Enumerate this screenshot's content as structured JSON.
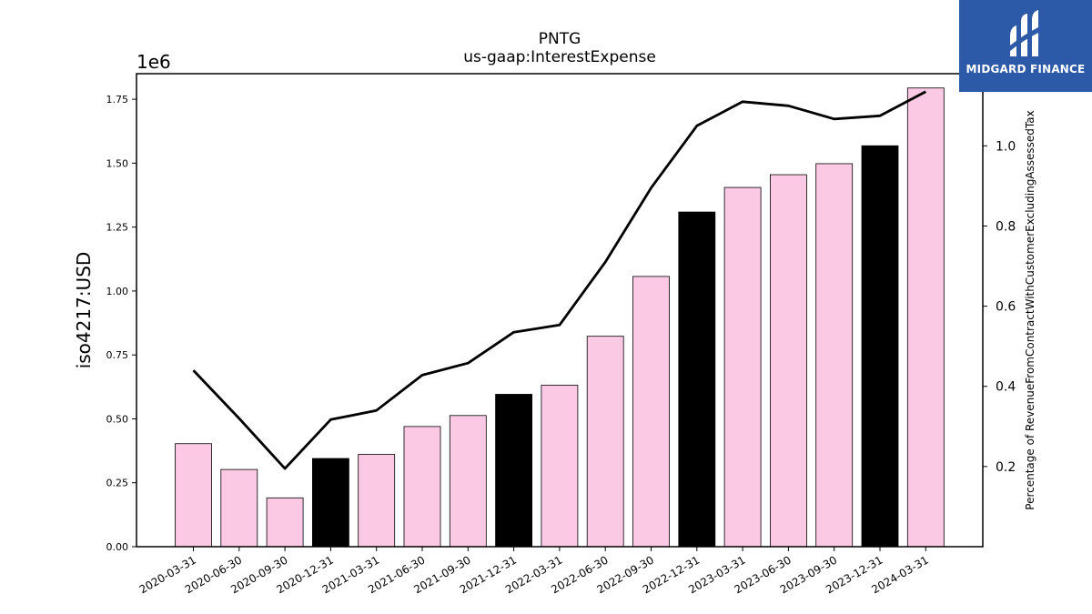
{
  "chart_data": {
    "type": "bar",
    "title": "PNTG",
    "subtitle": "us-gaap:InterestExpense",
    "ylabel": "iso4217:USD",
    "ylabel_right": "Percentage of RevenueFromContractWithCustomerExcludingAssessedTax",
    "offset_text": "1e6",
    "ylim": [
      0,
      1850000
    ],
    "ylim_right": [
      0.0,
      1.18
    ],
    "yticks": [
      0,
      250000,
      500000,
      750000,
      1000000,
      1250000,
      1500000,
      1750000
    ],
    "ytick_labels": [
      "0.00",
      "0.25",
      "0.50",
      "0.75",
      "1.00",
      "1.25",
      "1.50",
      "1.75"
    ],
    "yticks_right": [
      0.2,
      0.4,
      0.6,
      0.8,
      1.0
    ],
    "ytick_labels_right": [
      "0.2",
      "0.4",
      "0.6",
      "0.8",
      "1.0"
    ],
    "categories": [
      "2020-03-31",
      "2020-06-30",
      "2020-09-30",
      "2020-12-31",
      "2021-03-31",
      "2021-06-30",
      "2021-09-30",
      "2021-12-31",
      "2022-03-31",
      "2022-06-30",
      "2022-09-30",
      "2022-12-31",
      "2023-03-31",
      "2023-06-30",
      "2023-09-30",
      "2023-12-31",
      "2024-03-31"
    ],
    "values": [
      403000,
      302000,
      191000,
      345000,
      361000,
      470000,
      513000,
      596000,
      632000,
      823000,
      1057000,
      1309000,
      1405000,
      1455000,
      1498000,
      1568000,
      1794000
    ],
    "bar_colors": [
      "#fcc9e4",
      "#fcc9e4",
      "#fcc9e4",
      "#000000",
      "#fcc9e4",
      "#fcc9e4",
      "#fcc9e4",
      "#000000",
      "#fcc9e4",
      "#fcc9e4",
      "#fcc9e4",
      "#000000",
      "#fcc9e4",
      "#fcc9e4",
      "#fcc9e4",
      "#000000",
      "#fcc9e4"
    ],
    "line_series": {
      "axis": "right",
      "color": "#000000",
      "values": [
        0.44,
        0.32,
        0.195,
        0.317,
        0.34,
        0.428,
        0.458,
        0.535,
        0.553,
        0.71,
        0.895,
        1.05,
        1.11,
        1.1,
        1.067,
        1.075,
        1.135
      ]
    },
    "grid": false,
    "legend": "none"
  },
  "logo": {
    "text": "MIDGARD FINANCE",
    "background": "#2d5aa8"
  }
}
